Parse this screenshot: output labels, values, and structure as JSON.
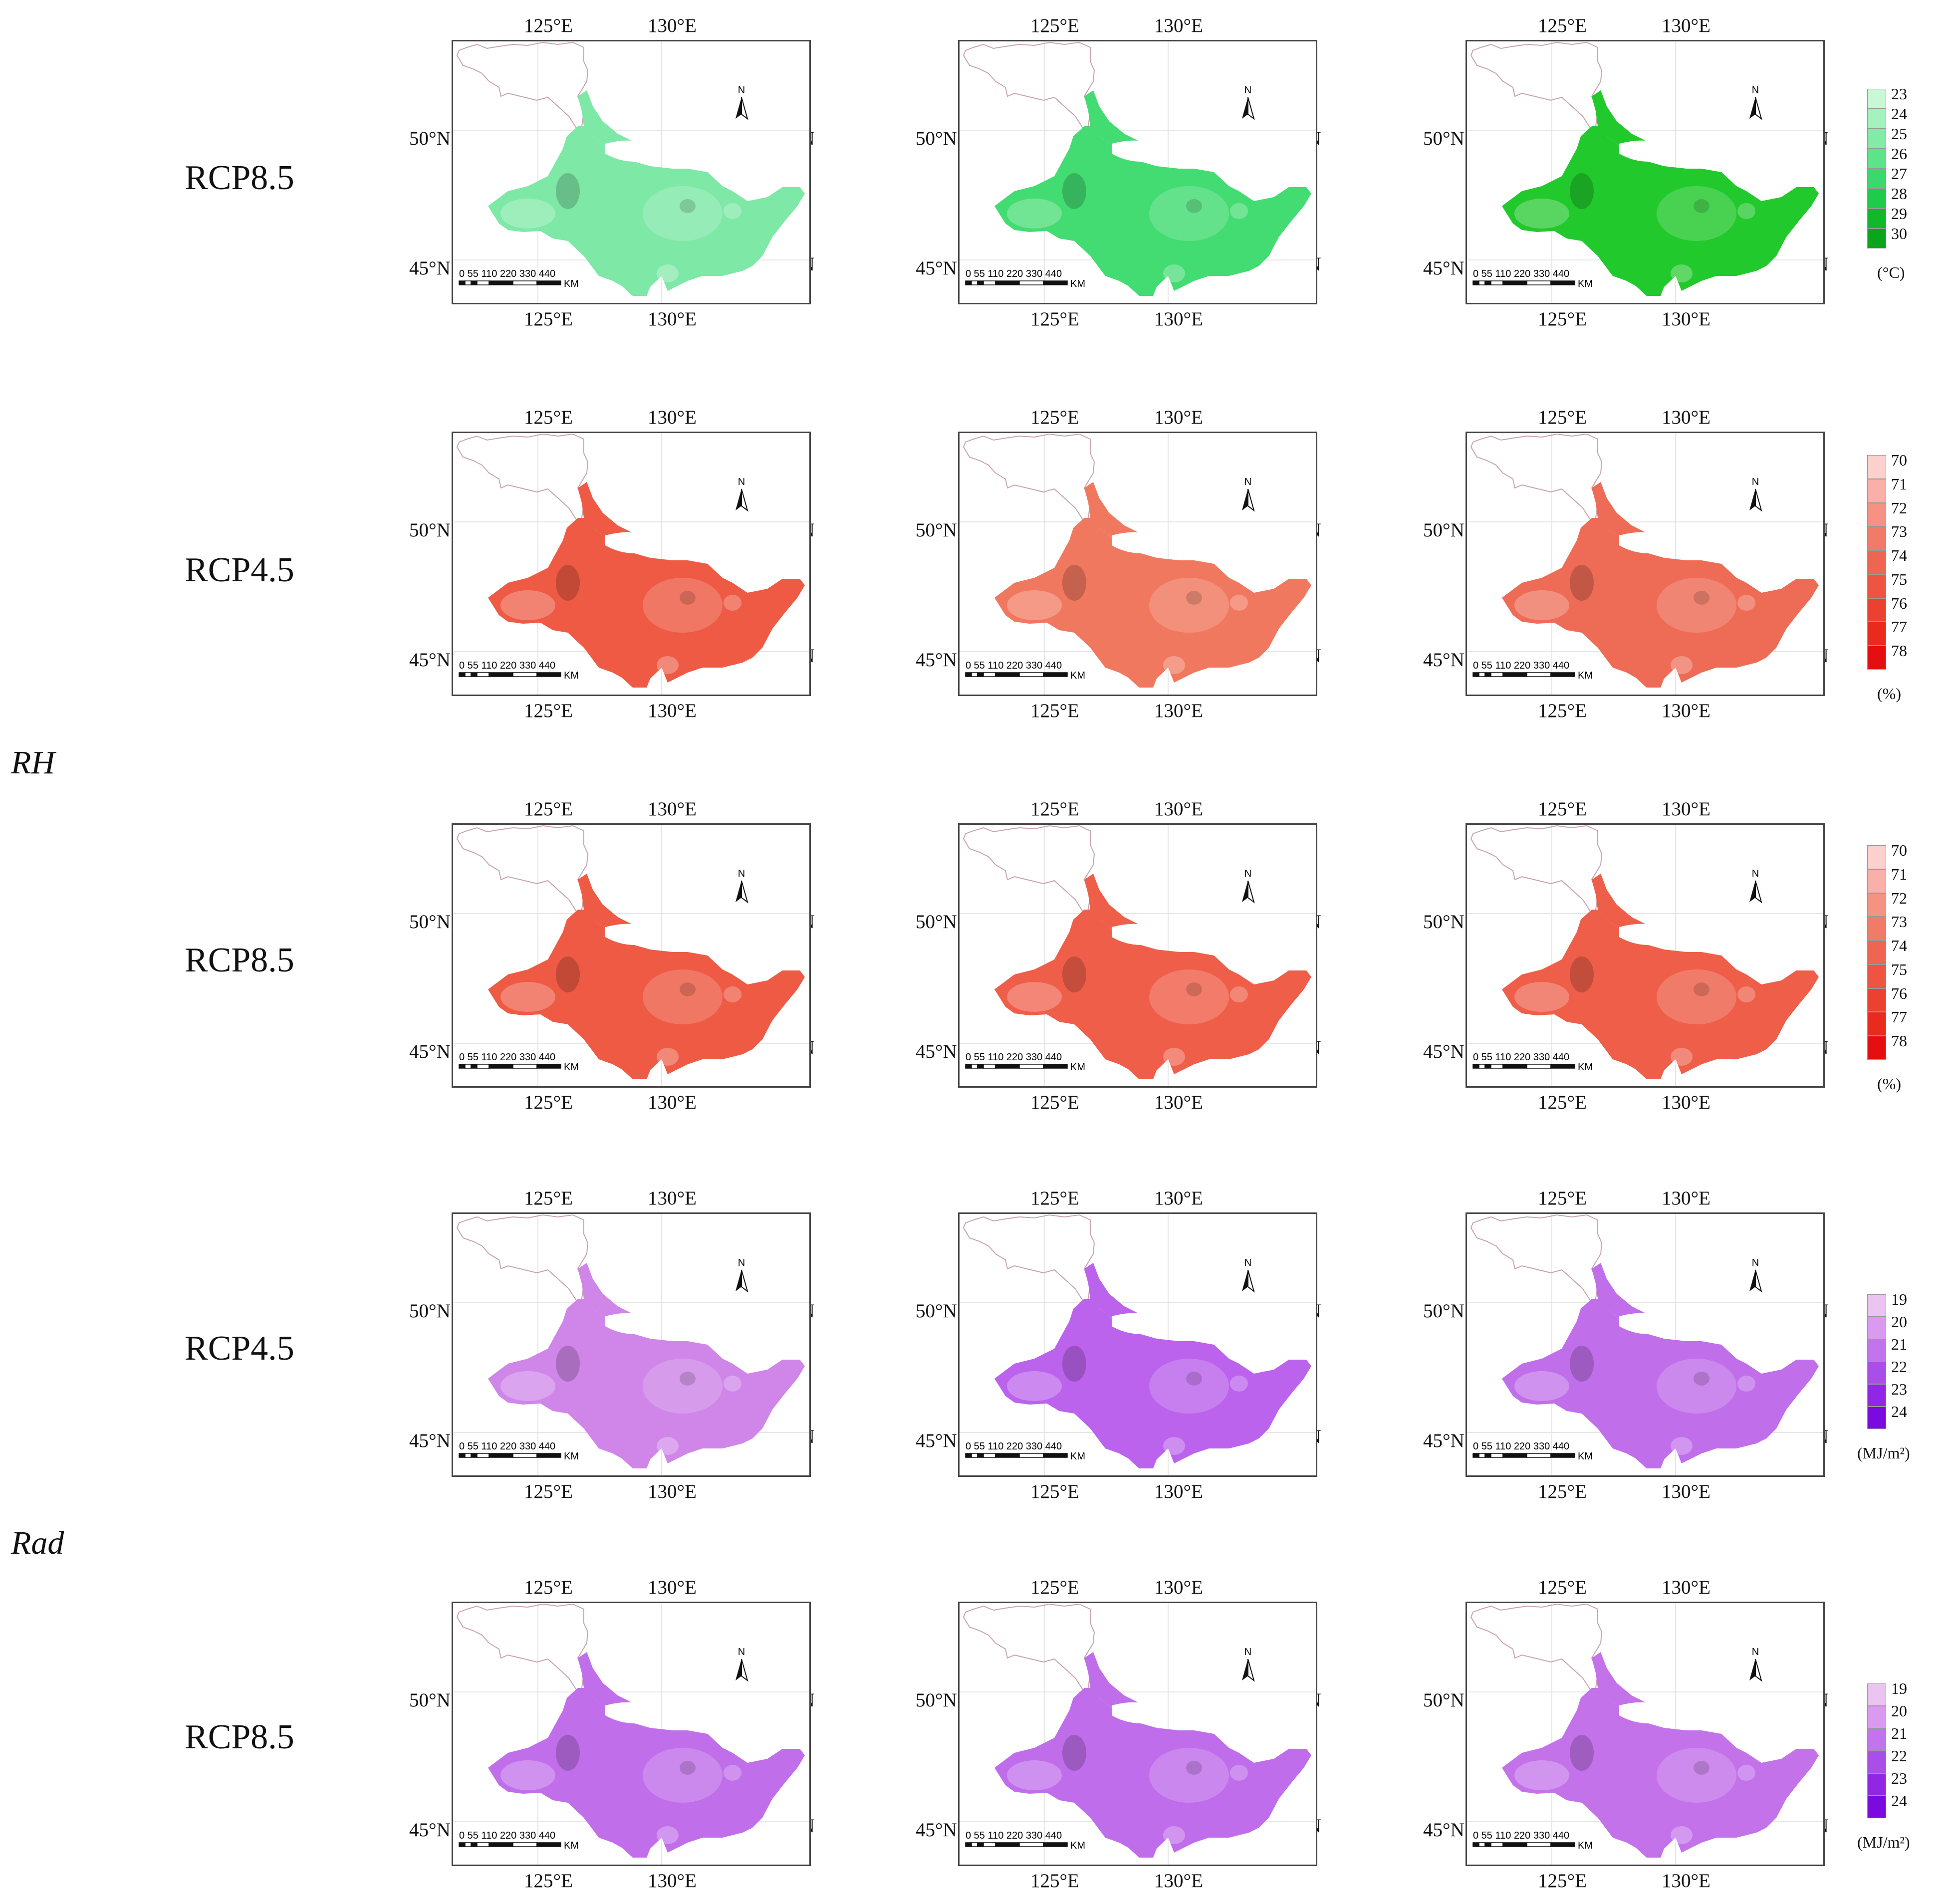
{
  "axes": {
    "lon_labels": [
      "125°E",
      "130°E"
    ],
    "lat_labels": [
      "50°N",
      "45°N"
    ]
  },
  "map_furniture": {
    "north_label": "N",
    "scale_numbers": "0 55 110 220 330 440",
    "scale_unit": "KM"
  },
  "variable_labels": [
    "RH",
    "Rad"
  ],
  "rows": [
    {
      "scenario": "RCP8.5",
      "palette": "temp",
      "colors": [
        "#7ee8a6",
        "#43dc72",
        "#22c92c"
      ]
    },
    {
      "scenario": "RCP4.5",
      "palette": "rh",
      "colors": [
        "#ee5a44",
        "#f0785f",
        "#ee6b55"
      ]
    },
    {
      "scenario": "RCP8.5",
      "palette": "rh",
      "colors": [
        "#ee5a44",
        "#ef5e48",
        "#ee5e49"
      ]
    },
    {
      "scenario": "RCP4.5",
      "palette": "rad",
      "colors": [
        "#cf86e8",
        "#bb63ec",
        "#c06eea"
      ]
    },
    {
      "scenario": "RCP8.5",
      "palette": "rad",
      "colors": [
        "#c06eea",
        "#bf6deb",
        "#c372ea"
      ]
    }
  ],
  "legends": {
    "temp": {
      "labels": [
        "23",
        "24",
        "25",
        "26",
        "27",
        "28",
        "29",
        "30"
      ],
      "colors": [
        "#c8f8d6",
        "#a6f2bf",
        "#84eba6",
        "#5de38a",
        "#3ad96d",
        "#1fcb4b",
        "#10b82c",
        "#0aa51a"
      ],
      "unit": "(°C)"
    },
    "rh": {
      "labels": [
        "70",
        "71",
        "72",
        "73",
        "74",
        "75",
        "76",
        "77",
        "78"
      ],
      "colors": [
        "#fcd0cc",
        "#f8b0a8",
        "#f59283",
        "#f27a69",
        "#f06552",
        "#ee5440",
        "#ec412f",
        "#ea2a1c",
        "#e60f0f"
      ],
      "unit": "(%)"
    },
    "rad": {
      "labels": [
        "19",
        "20",
        "21",
        "22",
        "23",
        "24"
      ],
      "colors": [
        "#ecc4f2",
        "#d99af0",
        "#c274ec",
        "#a94ee8",
        "#8f27e4",
        "#7a0ae0"
      ],
      "unit": "(MJ/m²)"
    }
  }
}
